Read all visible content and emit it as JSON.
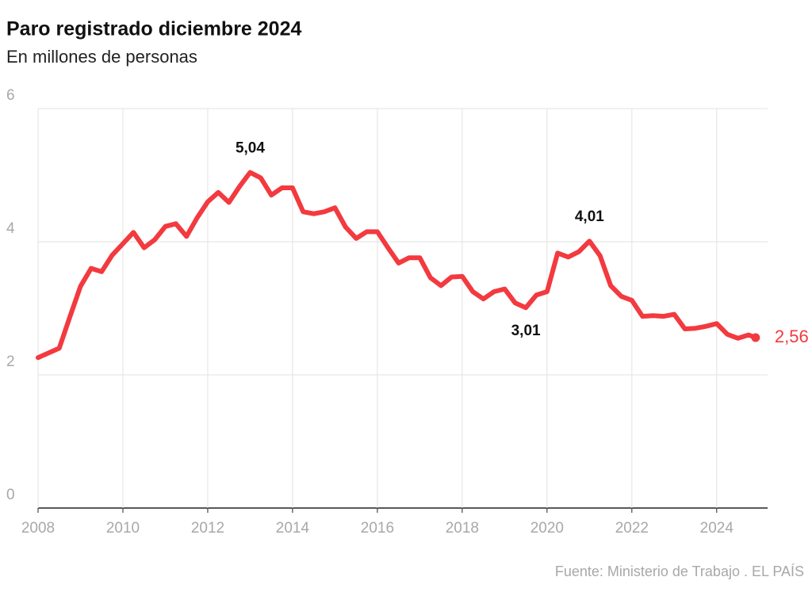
{
  "chart_data": {
    "type": "line",
    "title": "Paro registrado diciembre 2024",
    "subtitle": "En millones de personas",
    "source": "Fuente: Ministerio de Trabajo . EL PAÍS",
    "color": "#f23a3f",
    "grid": true,
    "xlim": [
      2008,
      2025.2
    ],
    "xticks": [
      2008,
      2010,
      2012,
      2014,
      2016,
      2018,
      2020,
      2022,
      2024
    ],
    "ylim": [
      0,
      6
    ],
    "yticks": [
      0,
      2,
      4,
      6
    ],
    "x": [
      2008,
      2008.25,
      2008.5,
      2008.75,
      2009,
      2009.25,
      2009.5,
      2009.75,
      2010,
      2010.25,
      2010.5,
      2010.75,
      2011,
      2011.25,
      2011.5,
      2011.75,
      2012,
      2012.25,
      2012.5,
      2012.75,
      2013,
      2013.25,
      2013.5,
      2013.75,
      2014,
      2014.25,
      2014.5,
      2014.75,
      2015,
      2015.25,
      2015.5,
      2015.75,
      2016,
      2016.25,
      2016.5,
      2016.75,
      2017,
      2017.25,
      2017.5,
      2017.75,
      2018,
      2018.25,
      2018.5,
      2018.75,
      2019,
      2019.25,
      2019.5,
      2019.75,
      2020,
      2020.25,
      2020.5,
      2020.75,
      2021,
      2021.25,
      2021.5,
      2021.75,
      2022,
      2022.25,
      2022.5,
      2022.75,
      2023,
      2023.25,
      2023.5,
      2023.75,
      2024,
      2024.25,
      2024.5,
      2024.75,
      2024.917
    ],
    "values": [
      2.26,
      2.33,
      2.4,
      2.87,
      3.33,
      3.6,
      3.55,
      3.8,
      3.97,
      4.14,
      3.91,
      4.03,
      4.23,
      4.27,
      4.08,
      4.36,
      4.6,
      4.74,
      4.59,
      4.83,
      5.04,
      4.96,
      4.7,
      4.81,
      4.81,
      4.45,
      4.42,
      4.45,
      4.51,
      4.22,
      4.05,
      4.15,
      4.15,
      3.91,
      3.68,
      3.76,
      3.76,
      3.46,
      3.34,
      3.47,
      3.48,
      3.25,
      3.14,
      3.25,
      3.29,
      3.08,
      3.01,
      3.2,
      3.25,
      3.83,
      3.77,
      3.85,
      4.01,
      3.79,
      3.34,
      3.18,
      3.12,
      2.88,
      2.89,
      2.88,
      2.91,
      2.69,
      2.7,
      2.73,
      2.77,
      2.61,
      2.55,
      2.6,
      2.56
    ],
    "annotations": [
      {
        "x": 2013,
        "y": 5.04,
        "label": "5,04",
        "position": "above"
      },
      {
        "x": 2019.5,
        "y": 3.01,
        "label": "3,01",
        "position": "below"
      },
      {
        "x": 2021,
        "y": 4.01,
        "label": "4,01",
        "position": "above"
      },
      {
        "x": 2024.917,
        "y": 2.56,
        "label": "2,56",
        "position": "right"
      }
    ]
  }
}
